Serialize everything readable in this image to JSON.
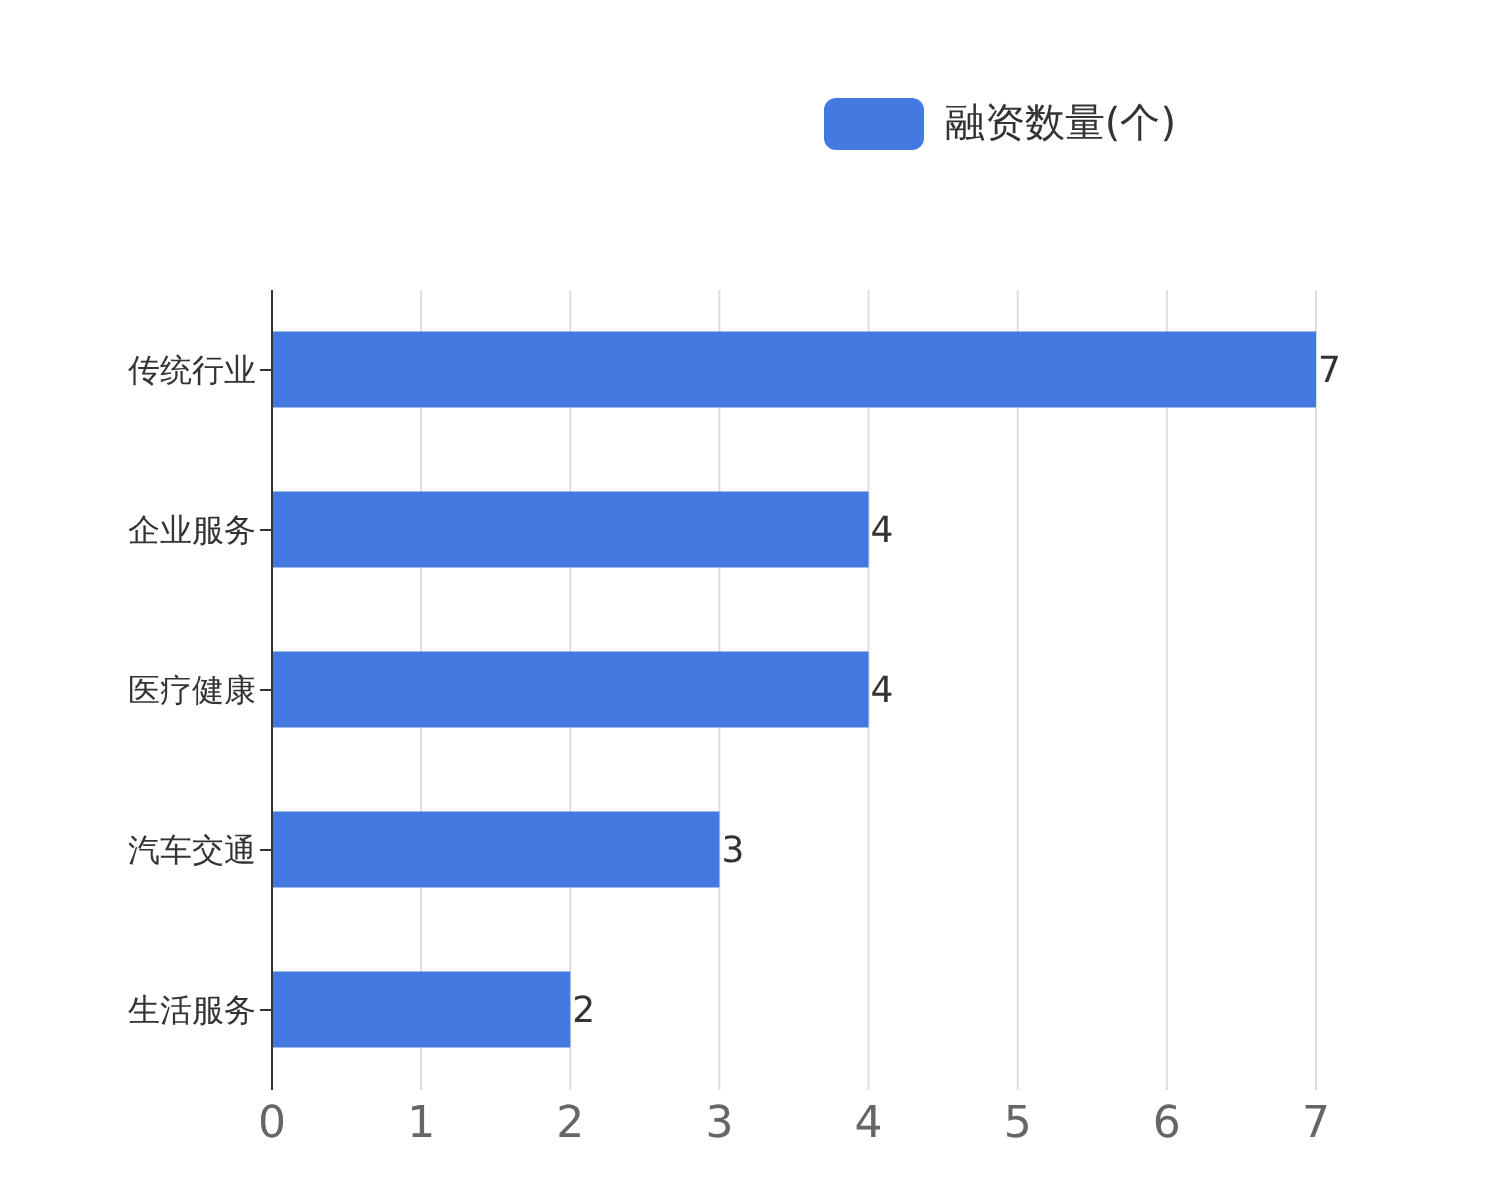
{
  "chart_data": {
    "type": "bar",
    "orientation": "horizontal",
    "categories": [
      "传统行业",
      "企业服务",
      "医疗健康",
      "汽车交通",
      "生活服务"
    ],
    "series": [
      {
        "name": "融资数量(个)",
        "color": "#4479e1",
        "values": [
          7,
          4,
          4,
          3,
          2
        ]
      }
    ],
    "xlim": [
      0,
      7
    ],
    "xticks": [
      0,
      1,
      2,
      3,
      4,
      5,
      6,
      7
    ],
    "grid": "x",
    "legend": "top right",
    "data_labels": true
  }
}
